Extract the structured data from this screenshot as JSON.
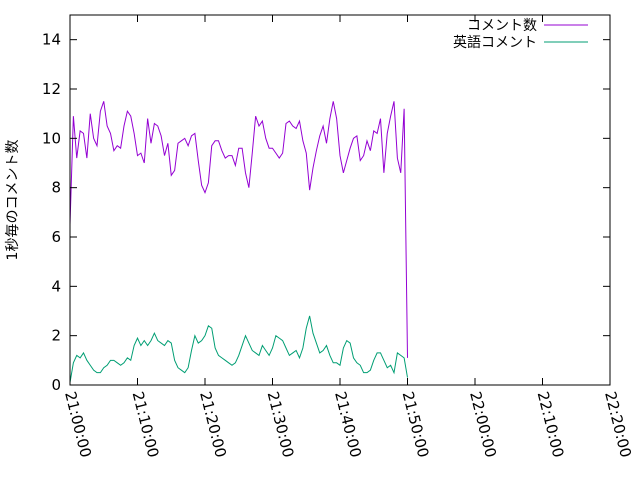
{
  "chart_data": {
    "type": "line",
    "ylabel": "1秒毎のコメント数",
    "xlabel": "",
    "x_ticks": [
      "21:00:00",
      "21:10:00",
      "21:20:00",
      "21:30:00",
      "21:40:00",
      "21:50:00",
      "22:00:00",
      "22:10:00",
      "22:20:00"
    ],
    "xlim": [
      "21:00:00",
      "22:20:00"
    ],
    "ylim": [
      0,
      15
    ],
    "y_ticks": [
      0,
      2,
      4,
      6,
      8,
      10,
      12,
      14
    ],
    "grid": false,
    "legend_position": "top-right",
    "x_step_seconds": 30,
    "series": [
      {
        "name": "コメント数",
        "color": "#9400d3",
        "values": [
          6.5,
          10.9,
          9.2,
          10.3,
          10.2,
          9.2,
          11.0,
          10.0,
          9.7,
          11.1,
          11.5,
          10.5,
          10.2,
          9.5,
          9.7,
          9.6,
          10.5,
          11.1,
          10.9,
          10.2,
          9.3,
          9.4,
          9.0,
          10.8,
          9.8,
          10.6,
          10.5,
          10.1,
          9.3,
          9.8,
          8.5,
          8.7,
          9.8,
          9.9,
          10.0,
          9.7,
          10.1,
          10.2,
          9.1,
          8.1,
          7.8,
          8.2,
          9.7,
          9.9,
          9.9,
          9.5,
          9.2,
          9.3,
          9.3,
          8.9,
          9.6,
          9.6,
          8.6,
          8.0,
          9.4,
          10.9,
          10.5,
          10.7,
          10.0,
          9.6,
          9.6,
          9.4,
          9.2,
          9.4,
          10.6,
          10.7,
          10.5,
          10.4,
          10.7,
          9.9,
          9.4,
          7.9,
          8.8,
          9.5,
          10.1,
          10.5,
          9.8,
          10.8,
          11.5,
          10.8,
          9.3,
          8.6,
          9.1,
          9.6,
          10.0,
          10.1,
          9.1,
          9.3,
          9.9,
          9.5,
          10.3,
          10.2,
          10.8,
          8.6,
          10.2,
          10.9,
          11.5,
          9.2,
          8.6,
          11.2,
          1.1
        ]
      },
      {
        "name": "英語コメント",
        "color": "#009e73",
        "values": [
          0.1,
          0.9,
          1.2,
          1.1,
          1.3,
          1.0,
          0.8,
          0.6,
          0.5,
          0.5,
          0.7,
          0.8,
          1.0,
          1.0,
          0.9,
          0.8,
          0.9,
          1.1,
          1.0,
          1.6,
          1.9,
          1.6,
          1.8,
          1.6,
          1.8,
          2.1,
          1.8,
          1.7,
          1.6,
          1.8,
          1.7,
          1.0,
          0.7,
          0.6,
          0.5,
          0.7,
          1.4,
          2.0,
          1.7,
          1.8,
          2.0,
          2.4,
          2.3,
          1.5,
          1.2,
          1.1,
          1.0,
          0.9,
          0.8,
          0.9,
          1.2,
          1.6,
          2.0,
          1.7,
          1.4,
          1.3,
          1.2,
          1.6,
          1.4,
          1.2,
          1.5,
          2.0,
          1.9,
          1.8,
          1.5,
          1.2,
          1.3,
          1.4,
          1.1,
          1.5,
          2.3,
          2.8,
          2.1,
          1.7,
          1.3,
          1.4,
          1.6,
          1.2,
          0.9,
          0.9,
          0.8,
          1.5,
          1.8,
          1.7,
          1.1,
          0.9,
          0.8,
          0.5,
          0.5,
          0.6,
          1.0,
          1.3,
          1.3,
          1.0,
          0.7,
          0.8,
          0.5,
          1.3,
          1.2,
          1.1,
          0.3
        ]
      }
    ]
  }
}
